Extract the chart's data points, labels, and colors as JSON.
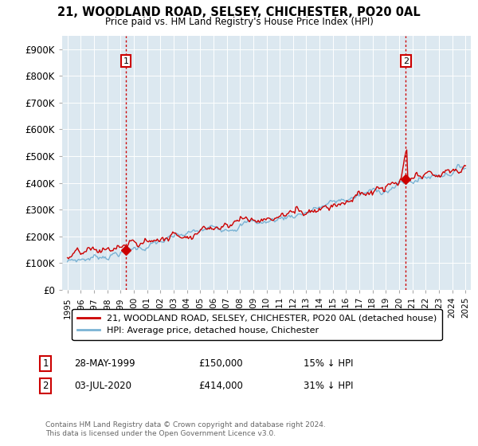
{
  "title": "21, WOODLAND ROAD, SELSEY, CHICHESTER, PO20 0AL",
  "subtitle": "Price paid vs. HM Land Registry's House Price Index (HPI)",
  "sale1_date": "28-MAY-1999",
  "sale1_price": 150000,
  "sale1_pct": "15% ↓ HPI",
  "sale2_date": "03-JUL-2020",
  "sale2_price": 414000,
  "sale2_pct": "31% ↓ HPI",
  "sale1_x": 1999.41,
  "sale2_x": 2020.5,
  "ylim": [
    0,
    950000
  ],
  "xlim_left": 1994.6,
  "xlim_right": 2025.4,
  "hpi_color": "#7ab3d4",
  "price_color": "#cc0000",
  "vline_color": "#cc0000",
  "background": "#dce8f0",
  "legend_label1": "21, WOODLAND ROAD, SELSEY, CHICHESTER, PO20 0AL (detached house)",
  "legend_label2": "HPI: Average price, detached house, Chichester",
  "footnote": "Contains HM Land Registry data © Crown copyright and database right 2024.\nThis data is licensed under the Open Government Licence v3.0.",
  "yticks": [
    0,
    100000,
    200000,
    300000,
    400000,
    500000,
    600000,
    700000,
    800000,
    900000
  ],
  "ytick_labels": [
    "£0",
    "£100K",
    "£200K",
    "£300K",
    "£400K",
    "£500K",
    "£600K",
    "£700K",
    "£800K",
    "£900K"
  ]
}
